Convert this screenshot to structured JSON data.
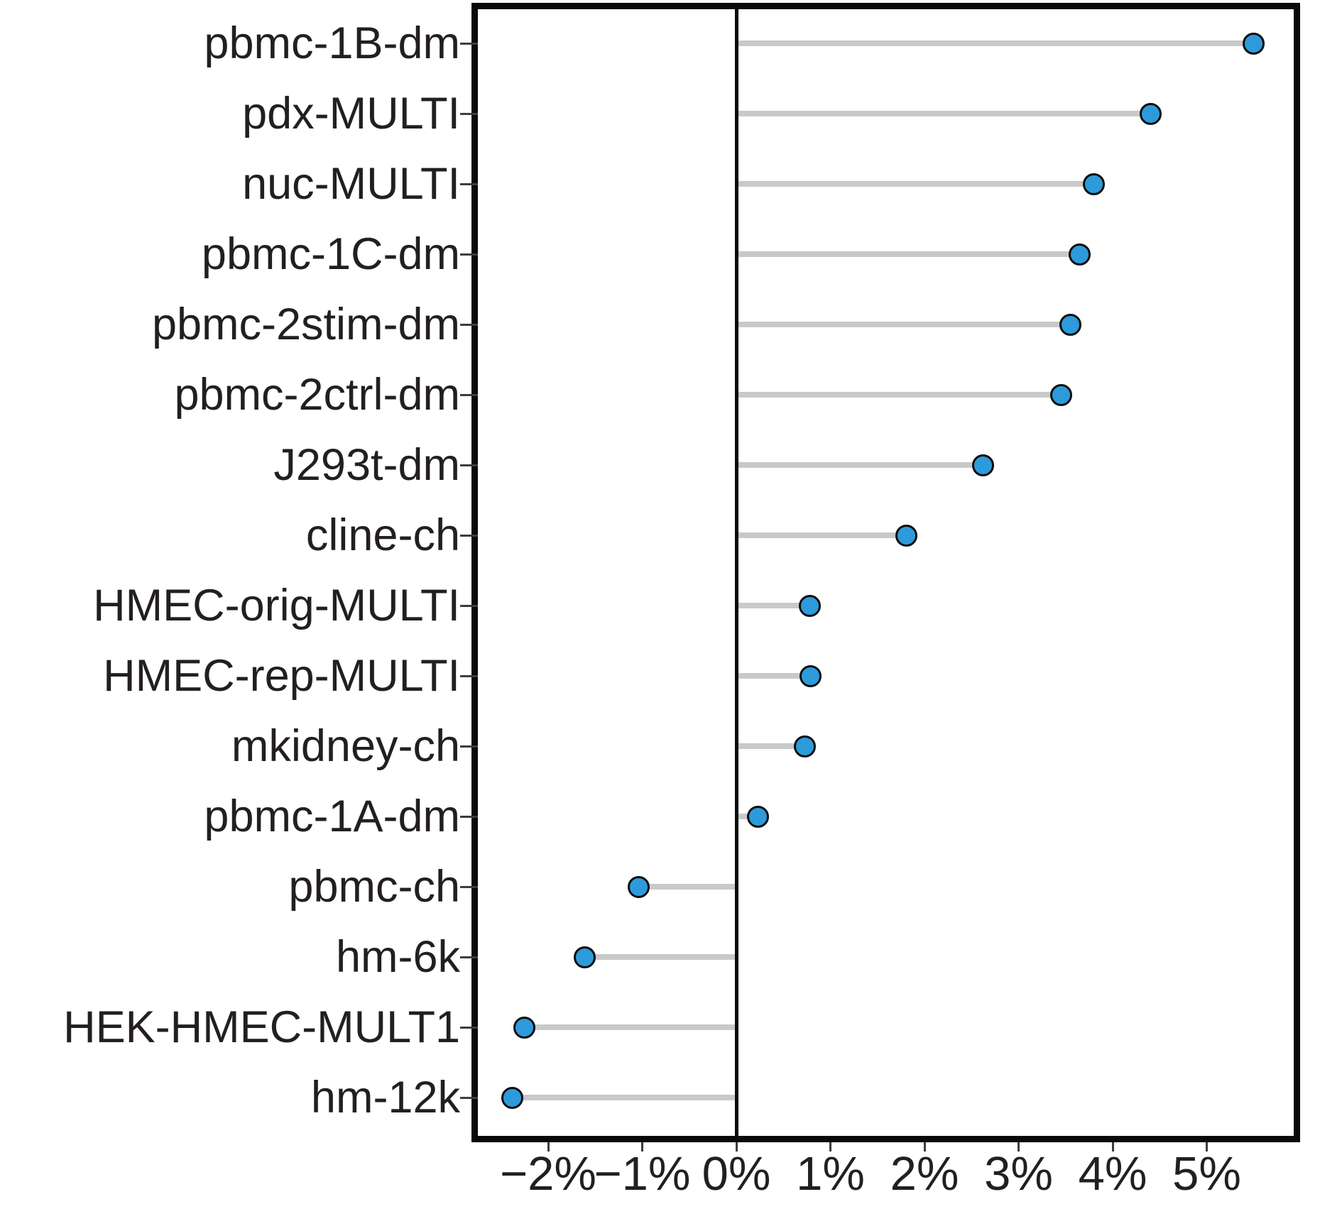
{
  "figure": {
    "background": "#ffffff"
  },
  "chart_data": {
    "type": "scatter",
    "variant": "horizontal-lollipop",
    "title": "",
    "xlabel": "",
    "ylabel": "",
    "unit": "%",
    "grid": false,
    "legend": false,
    "zero_reference_line": true,
    "xlim": [
      -2.77,
      5.9
    ],
    "x_tick_values": [
      -2,
      -1,
      0,
      1,
      2,
      3,
      4,
      5
    ],
    "x_tick_labels": [
      "−2%",
      "−1%",
      "0%",
      "1%",
      "2%",
      "3%",
      "4%",
      "5%"
    ],
    "categories": [
      "pbmc-1B-dm",
      "pdx-MULTI",
      "nuc-MULTI",
      "pbmc-1C-dm",
      "pbmc-2stim-dm",
      "pbmc-2ctrl-dm",
      "J293t-dm",
      "cline-ch",
      "HMEC-orig-MULTI",
      "HMEC-rep-MULTI",
      "mkidney-ch",
      "pbmc-1A-dm",
      "pbmc-ch",
      "hm-6k",
      "HEK-HMEC-MULT1",
      "hm-12k"
    ],
    "values": [
      5.5,
      4.4,
      3.8,
      3.65,
      3.55,
      3.45,
      2.62,
      1.81,
      0.78,
      0.79,
      0.73,
      0.23,
      -1.04,
      -1.61,
      -2.25,
      -2.38
    ],
    "colors": {
      "dot_fill": "#2d9bdb",
      "dot_stroke": "#0d0d0d",
      "stem": "#c9c9c9",
      "axis_border": "#0a0a0a",
      "zero_line": "#0a0a0a",
      "tick": "#3d3d3d",
      "text": "#231f20"
    }
  }
}
